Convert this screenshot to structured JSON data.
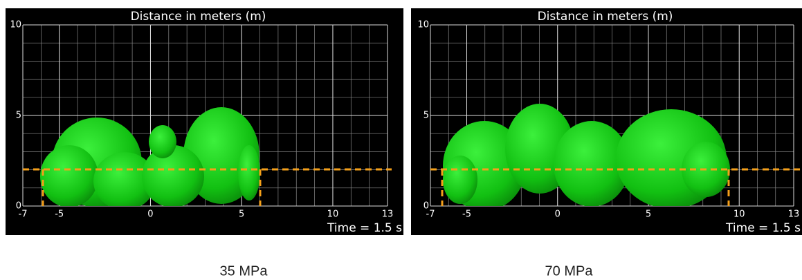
{
  "panels": [
    {
      "title": "Distance in meters (m)",
      "xlim": [
        -7,
        13
      ],
      "ylim": [
        0,
        10
      ],
      "xticks": [
        -7,
        -5,
        0,
        5,
        10,
        13
      ],
      "yticks": [
        0,
        5,
        10
      ],
      "time_label": "Time = 1.5 s",
      "caption": "35 MPa"
    },
    {
      "title": "Distance in meters (m)",
      "xlim": [
        -7,
        13
      ],
      "ylim": [
        0,
        10
      ],
      "xticks": [
        -7,
        -5,
        0,
        5,
        10,
        13
      ],
      "yticks": [
        0,
        5,
        10
      ],
      "time_label": "Time = 1.5 s",
      "caption": "70 MPa"
    }
  ]
}
